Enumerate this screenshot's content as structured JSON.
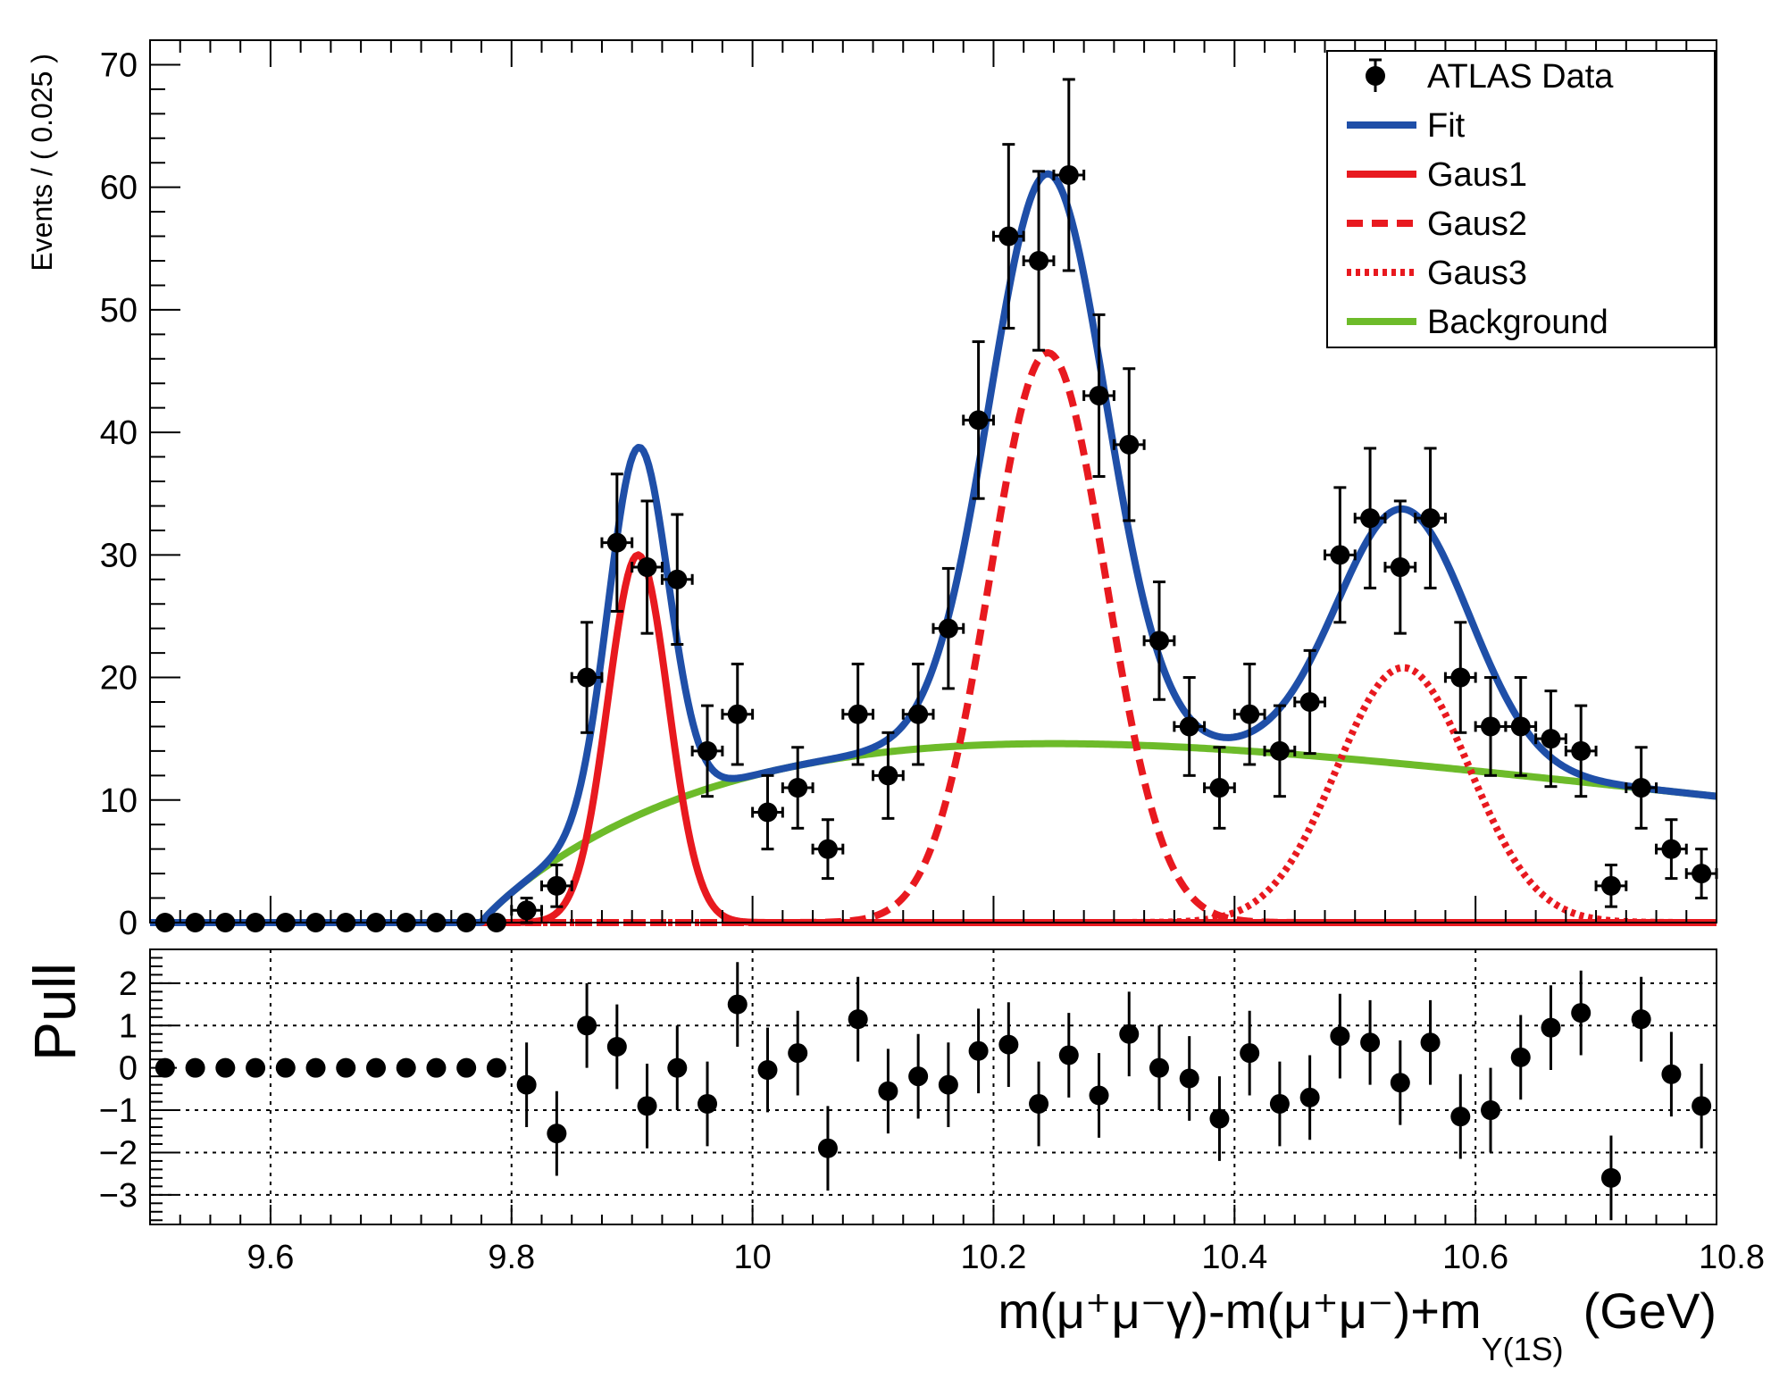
{
  "chart_data": [
    {
      "type": "scatter",
      "panel": "main",
      "ylabel": "Events / ( 0.025 )",
      "xlabel": "m(μ⁺μ⁻γ)-m(μ⁺μ⁻)+m",
      "xlabel_subscript": "Υ(1S)",
      "xlabel_unit": "(GeV)",
      "xlim": [
        9.5,
        10.8
      ],
      "ylim": [
        0,
        72
      ],
      "xticks": [
        9.6,
        9.8,
        10,
        10.2,
        10.4,
        10.6,
        10.8
      ],
      "xtick_labels": [
        "9.6",
        "9.8",
        "10",
        "10.2",
        "10.4",
        "10.6",
        "10.8"
      ],
      "yticks": [
        0,
        10,
        20,
        30,
        40,
        50,
        60,
        70
      ],
      "ytick_labels": [
        "0",
        "10",
        "20",
        "30",
        "40",
        "50",
        "60",
        "70"
      ],
      "bin_width": 0.025,
      "data": {
        "name": "ATLAS Data",
        "x": [
          9.5125,
          9.5375,
          9.5625,
          9.5875,
          9.6125,
          9.6375,
          9.6625,
          9.6875,
          9.7125,
          9.7375,
          9.7625,
          9.7875,
          9.8125,
          9.8375,
          9.8625,
          9.8875,
          9.9125,
          9.9375,
          9.9625,
          9.9875,
          10.0125,
          10.0375,
          10.0625,
          10.0875,
          10.1125,
          10.1375,
          10.1625,
          10.1875,
          10.2125,
          10.2375,
          10.2625,
          10.2875,
          10.3125,
          10.3375,
          10.3625,
          10.3875,
          10.4125,
          10.4375,
          10.4625,
          10.4875,
          10.5125,
          10.5375,
          10.5625,
          10.5875,
          10.6125,
          10.6375,
          10.6625,
          10.6875,
          10.7125,
          10.7375,
          10.7625,
          10.7875
        ],
        "y": [
          0,
          0,
          0,
          0,
          0,
          0,
          0,
          0,
          0,
          0,
          0,
          0,
          1,
          3,
          20,
          31,
          29,
          28,
          14,
          17,
          9,
          11,
          6,
          17,
          12,
          17,
          24,
          41,
          56,
          54,
          61,
          43,
          39,
          23,
          16,
          11,
          17,
          14,
          18,
          30,
          33,
          29,
          33,
          20,
          16,
          16,
          15,
          14,
          3,
          11,
          6,
          4
        ],
        "yerr": [
          0,
          0,
          0,
          0,
          0,
          0,
          0,
          0,
          0,
          0,
          0,
          0,
          1.0,
          1.7,
          4.5,
          5.6,
          5.4,
          5.3,
          3.7,
          4.1,
          3.0,
          3.3,
          2.4,
          4.1,
          3.5,
          4.1,
          4.9,
          6.4,
          7.5,
          7.3,
          7.8,
          6.6,
          6.2,
          4.8,
          4.0,
          3.3,
          4.1,
          3.7,
          4.2,
          5.5,
          5.7,
          5.4,
          5.7,
          4.5,
          4.0,
          4.0,
          3.9,
          3.7,
          1.7,
          3.3,
          2.4,
          2.0
        ]
      },
      "curves": [
        {
          "name": "Fit",
          "color": "#1f4fa8",
          "style": "solid",
          "components": "sum"
        },
        {
          "name": "Gaus1",
          "color": "#e8191f",
          "style": "solid",
          "amplitude": 30,
          "mean": 9.905,
          "sigma": 0.025
        },
        {
          "name": "Gaus2",
          "color": "#e8191f",
          "style": "dashed",
          "amplitude": 46.5,
          "mean": 10.245,
          "sigma": 0.048
        },
        {
          "name": "Gaus3",
          "color": "#e8191f",
          "style": "dotted",
          "amplitude": 20.8,
          "mean": 10.54,
          "sigma": 0.055
        },
        {
          "name": "Background",
          "color": "#6dbb2a",
          "style": "solid",
          "amplitude": 14.6,
          "peak": 10.25,
          "onset": 9.775,
          "tail": 0.53
        }
      ],
      "legend": [
        "ATLAS Data",
        "Fit",
        "Gaus1",
        "Gaus2",
        "Gaus3",
        "Background"
      ],
      "legend_position": "top-right"
    },
    {
      "type": "scatter",
      "panel": "pull",
      "ylabel": "Pull",
      "ylim": [
        -3.7,
        2.8
      ],
      "yticks": [
        -3,
        -2,
        -1,
        0,
        1,
        2
      ],
      "ytick_labels": [
        "−3",
        "−2",
        "−1",
        "0",
        "1",
        "2"
      ],
      "grid": true,
      "grid_x": [
        9.6,
        9.8,
        10,
        10.2,
        10.4,
        10.6
      ],
      "x": [
        9.5125,
        9.5375,
        9.5625,
        9.5875,
        9.6125,
        9.6375,
        9.6625,
        9.6875,
        9.7125,
        9.7375,
        9.7625,
        9.7875,
        9.8125,
        9.8375,
        9.8625,
        9.8875,
        9.9125,
        9.9375,
        9.9625,
        9.9875,
        10.0125,
        10.0375,
        10.0625,
        10.0875,
        10.1125,
        10.1375,
        10.1625,
        10.1875,
        10.2125,
        10.2375,
        10.2625,
        10.2875,
        10.3125,
        10.3375,
        10.3625,
        10.3875,
        10.4125,
        10.4375,
        10.4625,
        10.4875,
        10.5125,
        10.5375,
        10.5625,
        10.5875,
        10.6125,
        10.6375,
        10.6625,
        10.6875,
        10.7125,
        10.7375,
        10.7625,
        10.7875
      ],
      "y": [
        0,
        0,
        0,
        0,
        0,
        0,
        0,
        0,
        0,
        0,
        0,
        0,
        -0.4,
        -1.55,
        1.0,
        0.5,
        -0.9,
        0.0,
        -0.85,
        1.5,
        -0.05,
        0.35,
        -1.9,
        1.15,
        -0.55,
        -0.2,
        -0.4,
        0.4,
        0.55,
        -0.85,
        0.3,
        -0.65,
        0.8,
        0.0,
        -0.25,
        -1.2,
        0.35,
        -0.85,
        -0.7,
        0.75,
        0.6,
        -0.35,
        0.6,
        -1.15,
        -1.0,
        0.25,
        0.95,
        1.3,
        -2.6,
        1.15,
        -0.15,
        -0.9
      ],
      "yerr": [
        0,
        0,
        0,
        0,
        0,
        0,
        0,
        0,
        0,
        0,
        0,
        0,
        1,
        1,
        1,
        1,
        1,
        1,
        1,
        1,
        1,
        1,
        1,
        1,
        1,
        1,
        1,
        1,
        1,
        1,
        1,
        1,
        1,
        1,
        1,
        1,
        1,
        1,
        1,
        1,
        1,
        1,
        1,
        1,
        1,
        1,
        1,
        1,
        1,
        1,
        1,
        1
      ]
    }
  ]
}
